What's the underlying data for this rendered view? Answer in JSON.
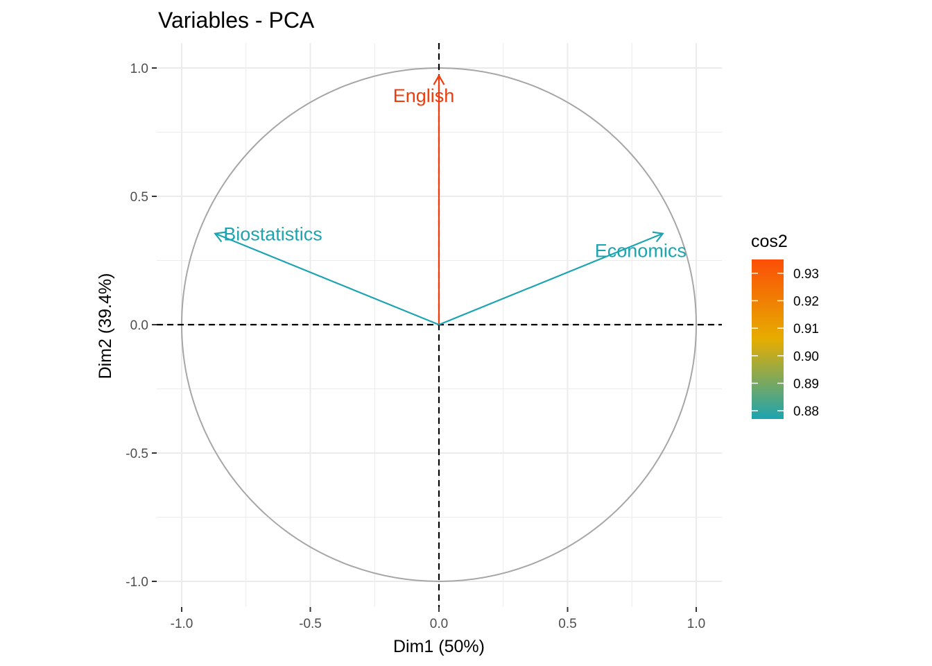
{
  "chart_data": {
    "type": "scatter",
    "subtype": "pca-variable-correlation-circle",
    "title": "Variables - PCA",
    "xlabel": "Dim1 (50%)",
    "ylabel": "Dim2 (39.4%)",
    "xlim": [
      -1.05,
      1.05
    ],
    "ylim": [
      -1.1,
      1.1
    ],
    "x_ticks": [
      -1.0,
      -0.5,
      0.0,
      0.5,
      1.0
    ],
    "x_tick_labels": [
      "-1.0",
      "-0.5",
      "0.0",
      "0.5",
      "1.0"
    ],
    "y_ticks": [
      -1.0,
      -0.5,
      0.0,
      0.5,
      1.0
    ],
    "y_tick_labels": [
      "-1.0",
      "-0.5",
      "0.0",
      "0.5",
      "1.0"
    ],
    "grid": true,
    "unit_circle": true,
    "variables": [
      {
        "name": "English",
        "x": 0.0,
        "y": 0.97,
        "cos2": 0.935,
        "color": "#f03c0c"
      },
      {
        "name": "Biostatistics",
        "x": -0.87,
        "y": 0.355,
        "cos2": 0.877,
        "color": "#1da4b0"
      },
      {
        "name": "Economics",
        "x": 0.87,
        "y": 0.355,
        "cos2": 0.877,
        "color": "#1da4b0"
      }
    ],
    "legend": {
      "title": "cos2",
      "position": "right",
      "range": [
        0.877,
        0.935
      ],
      "breaks": [
        0.88,
        0.89,
        0.9,
        0.91,
        0.92,
        0.93
      ],
      "break_labels": [
        "0.88",
        "0.89",
        "0.90",
        "0.91",
        "0.92",
        "0.93"
      ],
      "gradient": [
        "#1da4b0",
        "#e6ad00",
        "#fc4e07"
      ]
    }
  }
}
